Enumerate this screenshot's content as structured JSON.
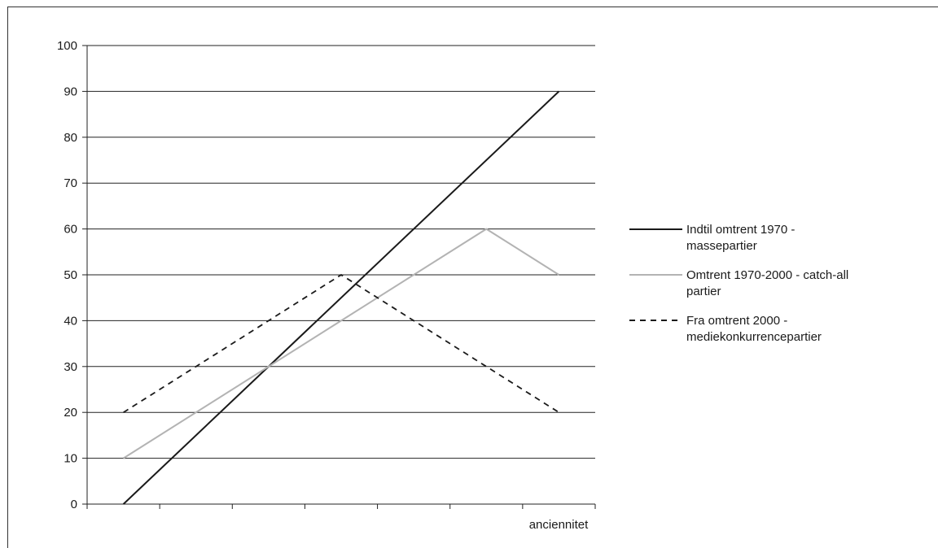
{
  "chart_data": {
    "type": "line",
    "title": "",
    "xlabel": "anciennitet",
    "ylabel": "",
    "ylim": [
      0,
      100
    ],
    "yticks": [
      0,
      10,
      20,
      30,
      40,
      50,
      60,
      70,
      80,
      90,
      100
    ],
    "x_categories": 7,
    "grid": "horizontal",
    "legend_position": "right",
    "series": [
      {
        "name_lines": [
          "Indtil omtrent 1970 -",
          "massepartier"
        ],
        "color": "#1a1a1a",
        "style": "solid",
        "x": [
          0.5,
          6.5
        ],
        "values": [
          0,
          90
        ]
      },
      {
        "name_lines": [
          "Omtrent 1970-2000 - catch-all",
          "partier"
        ],
        "color": "#b3b3b3",
        "style": "solid",
        "x": [
          0.5,
          3.5,
          5.5,
          6.5
        ],
        "values": [
          10,
          40,
          60,
          50
        ]
      },
      {
        "name_lines": [
          "Fra omtrent 2000 -",
          "mediekonkurrencepartier"
        ],
        "color": "#1a1a1a",
        "style": "dashed",
        "x": [
          0.5,
          3.5,
          6.5
        ],
        "values": [
          20,
          50,
          20
        ]
      }
    ]
  }
}
